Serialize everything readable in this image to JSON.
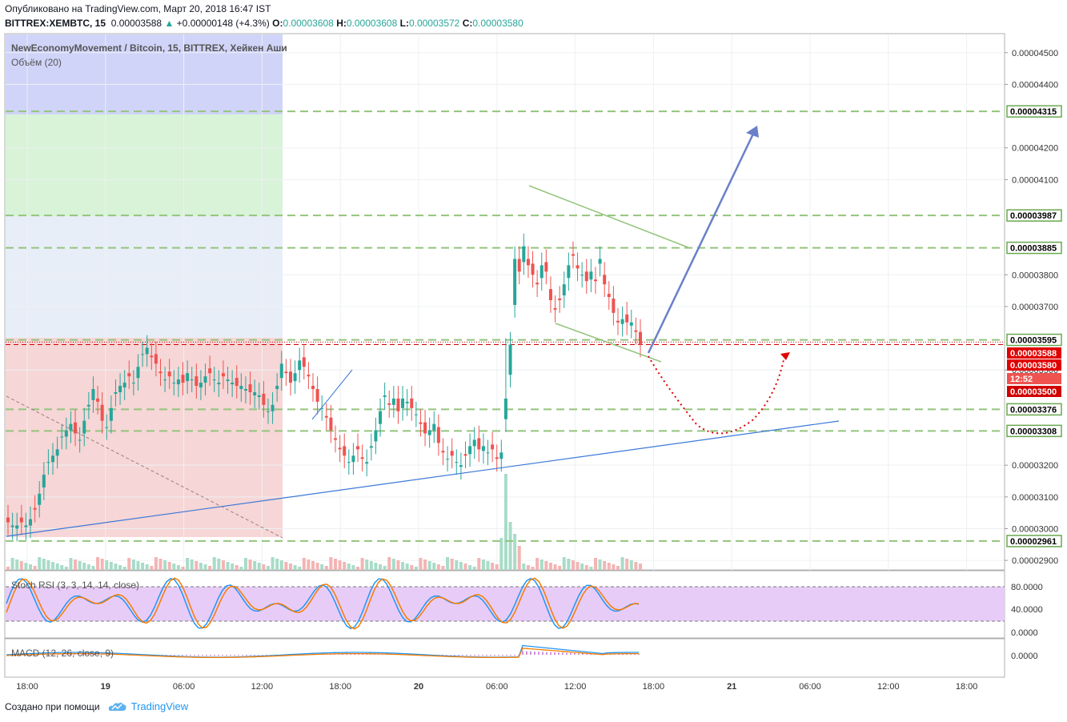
{
  "header": {
    "published": "Опубликовано на TradingView.com, Март 20, 2018 16:47 IST",
    "symbol": "BITTREX:XEMBTC, 15",
    "last": "0.00003588",
    "change": "+0.00000148 (+4.3%)",
    "o_label": "O:",
    "o": "0.00003608",
    "h_label": "H:",
    "h": "0.00003608",
    "l_label": "L:",
    "l": "0.00003572",
    "c_label": "C:",
    "c": "0.00003580"
  },
  "legend": {
    "title": "NewEconomyMovement / Bitcoin, 15, BITTREX, Хейкен Аши",
    "volume": "Объём (20)",
    "stoch": "Stoch RSI (3, 3, 14, 14, close)",
    "macd": "MACD (12, 26, close, 9)"
  },
  "footer": {
    "created": "Создано при помощи",
    "brand": "TradingView"
  },
  "colors": {
    "up": "#26a69a",
    "down": "#ef5350",
    "green_line": "#6aa84f",
    "arrow": "#6a7fc8",
    "trend": "#3c78d8",
    "label_red": "#e00000",
    "countdown": "#ef5350"
  },
  "chart_data": {
    "type": "candlestick",
    "ylim": [
      2.87e-05,
      4.56e-05
    ],
    "y_ticks": [
      "0.00004500",
      "0.00004400",
      "0.00004315",
      "0.00004200",
      "0.00004100",
      "0.00003987",
      "0.00003885",
      "0.00003800",
      "0.00003700",
      "0.00003595",
      "0.00003588",
      "0.00003580",
      "0.00003500",
      "0.00003376",
      "0.00003308",
      "0.00003200",
      "0.00003100",
      "0.00003000",
      "0.00002961",
      "0.00002900"
    ],
    "x_ticks": [
      "18:00",
      "19",
      "06:00",
      "12:00",
      "18:00",
      "20",
      "06:00",
      "12:00",
      "18:00",
      "21",
      "06:00",
      "12:00",
      "18:00"
    ],
    "levels": [
      {
        "value": 4.315e-05,
        "label": "0.00004315",
        "style": "dashed-green"
      },
      {
        "value": 3.987e-05,
        "label": "0.00003987",
        "style": "dashed-green"
      },
      {
        "value": 3.885e-05,
        "label": "0.00003885",
        "style": "dashed-green"
      },
      {
        "value": 3.595e-05,
        "label": "0.00003595",
        "style": "dashed-green"
      },
      {
        "value": 3.376e-05,
        "label": "0.00003376",
        "style": "dashed-green"
      },
      {
        "value": 3.308e-05,
        "label": "0.00003308",
        "style": "dashed-green"
      },
      {
        "value": 2.961e-05,
        "label": "0.00002961",
        "style": "dashed-green"
      },
      {
        "value": 3.58e-05,
        "label": "0.00003580",
        "style": "dashed-red"
      },
      {
        "value": 3.588e-05,
        "label": "0.00003588",
        "style": "dotted-red"
      }
    ],
    "price_labels": {
      "current": "0.00003588",
      "close": "0.00003580",
      "countdown": "12:52",
      "alert": "0.00003500"
    },
    "candles_close": [
      3.02e-05,
      3.01e-05,
      3.01e-05,
      3.02e-05,
      3.01e-05,
      3.03e-05,
      3.06e-05,
      3.11e-05,
      3.17e-05,
      3.21e-05,
      3.23e-05,
      3.25e-05,
      3.29e-05,
      3.31e-05,
      3.33e-05,
      3.3e-05,
      3.28e-05,
      3.34e-05,
      3.39e-05,
      3.44e-05,
      3.4e-05,
      3.34e-05,
      3.32e-05,
      3.38e-05,
      3.43e-05,
      3.45e-05,
      3.46e-05,
      3.48e-05,
      3.46e-05,
      3.51e-05,
      3.55e-05,
      3.57e-05,
      3.54e-05,
      3.52e-05,
      3.49e-05,
      3.47e-05,
      3.48e-05,
      3.46e-05,
      3.47e-05,
      3.46e-05,
      3.49e-05,
      3.47e-05,
      3.45e-05,
      3.46e-05,
      3.48e-05,
      3.49e-05,
      3.47e-05,
      3.46e-05,
      3.48e-05,
      3.47e-05,
      3.46e-05,
      3.45e-05,
      3.45e-05,
      3.44e-05,
      3.43e-05,
      3.43e-05,
      3.42e-05,
      3.39e-05,
      3.37e-05,
      3.39e-05,
      3.45e-05,
      3.52e-05,
      3.49e-05,
      3.46e-05,
      3.49e-05,
      3.53e-05,
      3.51e-05,
      3.48e-05,
      3.44e-05,
      3.4e-05,
      3.38e-05,
      3.35e-05,
      3.31e-05,
      3.28e-05,
      3.25e-05,
      3.23e-05,
      3.21e-05,
      3.23e-05,
      3.25e-05,
      3.22e-05,
      3.21e-05,
      3.26e-05,
      3.31e-05,
      3.37e-05,
      3.42e-05,
      3.39e-05,
      3.41e-05,
      3.37e-05,
      3.41e-05,
      3.4e-05,
      3.38e-05,
      3.36e-05,
      3.33e-05,
      3.3e-05,
      3.31e-05,
      3.33e-05,
      3.27e-05,
      3.24e-05,
      3.22e-05,
      3.23e-05,
      3.21e-05,
      3.2e-05,
      3.23e-05,
      3.26e-05,
      3.28e-05,
      3.25e-05,
      3.26e-05,
      3.24e-05,
      3.25e-05,
      3.22e-05,
      3.24e-05,
      3.41e-05,
      3.58e-05,
      3.85e-05,
      3.81e-05,
      3.89e-05,
      3.83e-05,
      3.8e-05,
      3.77e-05,
      3.83e-05,
      3.81e-05,
      3.72e-05,
      3.69e-05,
      3.72e-05,
      3.77e-05,
      3.83e-05,
      3.86e-05,
      3.82e-05,
      3.8e-05,
      3.78e-05,
      3.81e-05,
      3.78e-05,
      3.85e-05,
      3.77e-05,
      3.73e-05,
      3.68e-05,
      3.65e-05,
      3.66e-05,
      3.65e-05,
      3.65e-05,
      3.62e-05,
      3.58e-05
    ],
    "volume_ma_label": "Объём (20)",
    "stoch_levels": {
      "upper": "80.0000",
      "lower": "20.0000",
      "ticks": [
        "80.0000",
        "40.0000",
        "0.0000"
      ]
    },
    "macd_ticks": [
      "0.0000"
    ]
  }
}
